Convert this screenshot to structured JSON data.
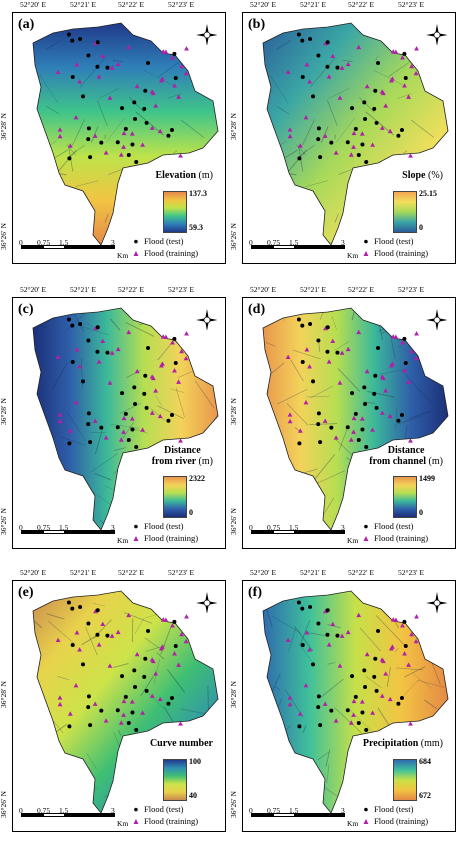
{
  "figure": {
    "lon_ticks": [
      "52°20′ E",
      "52°21′ E",
      "52°22′ E",
      "52°23′ E"
    ],
    "lat_ticks": [
      "36°28′ N",
      "36°26′ N"
    ],
    "scale": {
      "labels": [
        "0",
        "0.75",
        "1.5",
        "3"
      ],
      "unit": "Km"
    },
    "legend": {
      "test": "Flood (test)",
      "training": "Flood (training)"
    },
    "compass_letters": {
      "n": "N",
      "e": "E",
      "s": "S",
      "w": "W"
    }
  },
  "panels": [
    {
      "id": "a",
      "label": "(a)",
      "title": "Elevation",
      "unit": "(m)",
      "max": "137.3",
      "min": "59.3",
      "gradient": [
        "#e5894a",
        "#f2c443",
        "#bde34a",
        "#3fc48a",
        "#2f7fb8",
        "#203a8a"
      ]
    },
    {
      "id": "b",
      "label": "(b)",
      "title": "Slope",
      "unit": "(%)",
      "max": "25.15",
      "min": "0",
      "gradient": [
        "#f2a552",
        "#f3df5c",
        "#a6d95a",
        "#3ba6a5",
        "#2a5d9b"
      ]
    },
    {
      "id": "c",
      "label": "(c)",
      "title": "Distance\nfrom river",
      "unit": "(m)",
      "max": "2322",
      "min": "0",
      "gradient": [
        "#e9974d",
        "#f3d25a",
        "#b6de52",
        "#3cb99a",
        "#2f5fa9",
        "#1c2f7a"
      ]
    },
    {
      "id": "d",
      "label": "(d)",
      "title": "Distance\nfrom channel",
      "unit": "(m)",
      "max": "1499",
      "min": "0",
      "gradient": [
        "#e9974d",
        "#f3d25a",
        "#b6de52",
        "#3cb99a",
        "#2f5fa9",
        "#1c2f7a"
      ]
    },
    {
      "id": "e",
      "label": "(e)",
      "title": "Curve number",
      "unit": "",
      "max": "100",
      "min": "40",
      "gradient": [
        "#203a8a",
        "#2f8fb3",
        "#3fbf73",
        "#cde34a",
        "#e8d24c",
        "#c98a4e"
      ]
    },
    {
      "id": "f",
      "label": "(f)",
      "title": "Precipitation",
      "unit": "(mm)",
      "max": "684",
      "min": "672",
      "gradient": [
        "#2f6bb0",
        "#3fc09a",
        "#c6e049",
        "#f2c443",
        "#e58a45"
      ]
    }
  ],
  "colors": {
    "test_marker": "#000000",
    "training_marker": "#b31fa8",
    "frame": "#000000"
  }
}
